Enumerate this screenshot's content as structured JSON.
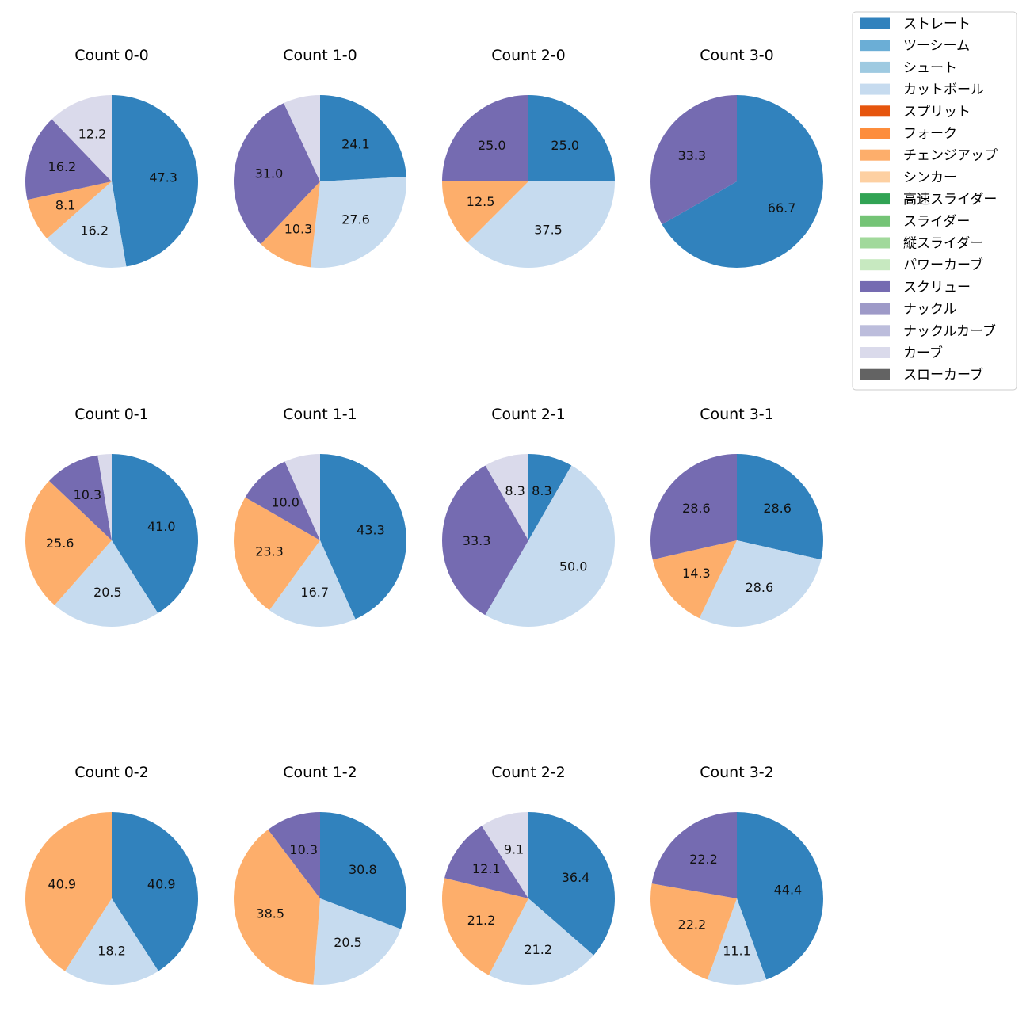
{
  "chart_data": {
    "type": "pie",
    "grid": false,
    "legend_position": "top-right",
    "legend": [
      {
        "name": "ストレート",
        "color": "#3182bd"
      },
      {
        "name": "ツーシーム",
        "color": "#6baed6"
      },
      {
        "name": "シュート",
        "color": "#9ecae1"
      },
      {
        "name": "カットボール",
        "color": "#c6dbef"
      },
      {
        "name": "スプリット",
        "color": "#e6550d"
      },
      {
        "name": "フォーク",
        "color": "#fd8d3c"
      },
      {
        "name": "チェンジアップ",
        "color": "#fdae6b"
      },
      {
        "name": "シンカー",
        "color": "#fdd0a2"
      },
      {
        "name": "高速スライダー",
        "color": "#31a354"
      },
      {
        "name": "スライダー",
        "color": "#74c476"
      },
      {
        "name": "縦スライダー",
        "color": "#a1d99b"
      },
      {
        "name": "パワーカーブ",
        "color": "#c7e9c0"
      },
      {
        "name": "スクリュー",
        "color": "#756bb1"
      },
      {
        "name": "ナックル",
        "color": "#9e9ac8"
      },
      {
        "name": "ナックルカーブ",
        "color": "#bcbddc"
      },
      {
        "name": "カーブ",
        "color": "#dadaeb"
      },
      {
        "name": "スローカーブ",
        "color": "#636363"
      }
    ],
    "charts": [
      {
        "title": "Count 0-0",
        "slices": [
          {
            "name": "ストレート",
            "value": 47.3,
            "label": "47.3"
          },
          {
            "name": "カットボール",
            "value": 16.2,
            "label": "16.2"
          },
          {
            "name": "チェンジアップ",
            "value": 8.1,
            "label": "8.1"
          },
          {
            "name": "スクリュー",
            "value": 16.2,
            "label": "16.2"
          },
          {
            "name": "カーブ",
            "value": 12.2,
            "label": "12.2"
          }
        ]
      },
      {
        "title": "Count 1-0",
        "slices": [
          {
            "name": "ストレート",
            "value": 24.1,
            "label": "24.1"
          },
          {
            "name": "カットボール",
            "value": 27.6,
            "label": "27.6"
          },
          {
            "name": "チェンジアップ",
            "value": 10.3,
            "label": "10.3"
          },
          {
            "name": "スクリュー",
            "value": 31.0,
            "label": "31.0"
          },
          {
            "name": "カーブ",
            "value": 6.9,
            "label": ""
          }
        ]
      },
      {
        "title": "Count 2-0",
        "slices": [
          {
            "name": "ストレート",
            "value": 25.0,
            "label": "25.0"
          },
          {
            "name": "カットボール",
            "value": 37.5,
            "label": "37.5"
          },
          {
            "name": "チェンジアップ",
            "value": 12.5,
            "label": "12.5"
          },
          {
            "name": "スクリュー",
            "value": 25.0,
            "label": "25.0"
          }
        ]
      },
      {
        "title": "Count 3-0",
        "slices": [
          {
            "name": "ストレート",
            "value": 66.7,
            "label": "66.7"
          },
          {
            "name": "スクリュー",
            "value": 33.3,
            "label": "33.3"
          }
        ]
      },
      {
        "title": "Count 0-1",
        "slices": [
          {
            "name": "ストレート",
            "value": 41.0,
            "label": "41.0"
          },
          {
            "name": "カットボール",
            "value": 20.5,
            "label": "20.5"
          },
          {
            "name": "チェンジアップ",
            "value": 25.6,
            "label": "25.6"
          },
          {
            "name": "スクリュー",
            "value": 10.3,
            "label": "10.3"
          },
          {
            "name": "カーブ",
            "value": 2.6,
            "label": ""
          }
        ]
      },
      {
        "title": "Count 1-1",
        "slices": [
          {
            "name": "ストレート",
            "value": 43.3,
            "label": "43.3"
          },
          {
            "name": "カットボール",
            "value": 16.7,
            "label": "16.7"
          },
          {
            "name": "チェンジアップ",
            "value": 23.3,
            "label": "23.3"
          },
          {
            "name": "スクリュー",
            "value": 10.0,
            "label": "10.0"
          },
          {
            "name": "カーブ",
            "value": 6.7,
            "label": ""
          }
        ]
      },
      {
        "title": "Count 2-1",
        "slices": [
          {
            "name": "ストレート",
            "value": 8.3,
            "label": "8.3"
          },
          {
            "name": "カットボール",
            "value": 50.0,
            "label": "50.0"
          },
          {
            "name": "スクリュー",
            "value": 33.3,
            "label": "33.3"
          },
          {
            "name": "カーブ",
            "value": 8.3,
            "label": "8.3"
          }
        ]
      },
      {
        "title": "Count 3-1",
        "slices": [
          {
            "name": "ストレート",
            "value": 28.6,
            "label": "28.6"
          },
          {
            "name": "カットボール",
            "value": 28.6,
            "label": "28.6"
          },
          {
            "name": "チェンジアップ",
            "value": 14.3,
            "label": "14.3"
          },
          {
            "name": "スクリュー",
            "value": 28.6,
            "label": "28.6"
          }
        ]
      },
      {
        "title": "Count 0-2",
        "slices": [
          {
            "name": "ストレート",
            "value": 40.9,
            "label": "40.9"
          },
          {
            "name": "カットボール",
            "value": 18.2,
            "label": "18.2"
          },
          {
            "name": "チェンジアップ",
            "value": 40.9,
            "label": "40.9"
          }
        ]
      },
      {
        "title": "Count 1-2",
        "slices": [
          {
            "name": "ストレート",
            "value": 30.8,
            "label": "30.8"
          },
          {
            "name": "カットボール",
            "value": 20.5,
            "label": "20.5"
          },
          {
            "name": "チェンジアップ",
            "value": 38.5,
            "label": "38.5"
          },
          {
            "name": "スクリュー",
            "value": 10.3,
            "label": "10.3"
          }
        ]
      },
      {
        "title": "Count 2-2",
        "slices": [
          {
            "name": "ストレート",
            "value": 36.4,
            "label": "36.4"
          },
          {
            "name": "カットボール",
            "value": 21.2,
            "label": "21.2"
          },
          {
            "name": "チェンジアップ",
            "value": 21.2,
            "label": "21.2"
          },
          {
            "name": "スクリュー",
            "value": 12.1,
            "label": "12.1"
          },
          {
            "name": "カーブ",
            "value": 9.1,
            "label": "9.1"
          }
        ]
      },
      {
        "title": "Count 3-2",
        "slices": [
          {
            "name": "ストレート",
            "value": 44.4,
            "label": "44.4"
          },
          {
            "name": "カットボール",
            "value": 11.1,
            "label": "11.1"
          },
          {
            "name": "チェンジアップ",
            "value": 22.2,
            "label": "22.2"
          },
          {
            "name": "スクリュー",
            "value": 22.2,
            "label": "22.2"
          }
        ]
      }
    ]
  }
}
